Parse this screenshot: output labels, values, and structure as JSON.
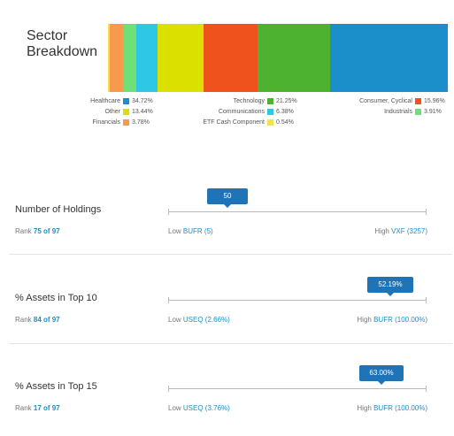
{
  "sector": {
    "title_line1": "Sector",
    "title_line2": "Breakdown",
    "segments": [
      {
        "name": "ETF Cash Component",
        "pct": 0.54,
        "color": "#f5e04a"
      },
      {
        "name": "Financials",
        "pct": 3.78,
        "color": "#f79a4e"
      },
      {
        "name": "Industrials",
        "pct": 3.91,
        "color": "#6ee07a"
      },
      {
        "name": "Communications",
        "pct": 6.38,
        "color": "#2ec7e6"
      },
      {
        "name": "Other",
        "pct": 13.44,
        "color": "#dce000"
      },
      {
        "name": "Consumer, Cyclical",
        "pct": 15.96,
        "color": "#f0521e"
      },
      {
        "name": "Technology",
        "pct": 21.25,
        "color": "#4db22f"
      },
      {
        "name": "Healthcare",
        "pct": 34.72,
        "color": "#1a8fc9"
      }
    ],
    "legend": [
      {
        "label": "Healthcare",
        "value": "34.72%",
        "color": "#1a8fc9"
      },
      {
        "label": "Technology",
        "value": "21.25%",
        "color": "#4db22f"
      },
      {
        "label": "Consumer, Cyclical",
        "value": "15.96%",
        "color": "#f0521e"
      },
      {
        "label": "Other",
        "value": "13.44%",
        "color": "#dce000"
      },
      {
        "label": "Communications",
        "value": "6.38%",
        "color": "#2ec7e6"
      },
      {
        "label": "Industrials",
        "value": "3.91%",
        "color": "#6ee07a"
      },
      {
        "label": "Financials",
        "value": "3.78%",
        "color": "#f79a4e"
      },
      {
        "label": "ETF Cash Component",
        "value": "0.54%",
        "color": "#f5e04a"
      }
    ]
  },
  "metrics": [
    {
      "name": "Number of Holdings",
      "rank_prefix": "Rank ",
      "rank_value": "75 of 97",
      "tooltip": "50",
      "marker_fraction": 0.23,
      "low_prefix": "Low ",
      "low_link": "BUFR (5)",
      "high_prefix": "High ",
      "high_link": "VXF (3257)"
    },
    {
      "name": "% Assets in Top 10",
      "rank_prefix": "Rank ",
      "rank_value": "84 of 97",
      "tooltip": "52.19%",
      "marker_fraction": 0.86,
      "low_prefix": "Low ",
      "low_link": "USEQ (2.66%)",
      "high_prefix": "High ",
      "high_link": "BUFR (100.00%)"
    },
    {
      "name": "% Assets in Top 15",
      "rank_prefix": "Rank ",
      "rank_value": "17 of 97",
      "tooltip": "63.00%",
      "marker_fraction": 0.82,
      "low_prefix": "Low ",
      "low_link": "USEQ (3.76%)",
      "high_prefix": "High ",
      "high_link": "BUFR (100.00%)"
    }
  ]
}
